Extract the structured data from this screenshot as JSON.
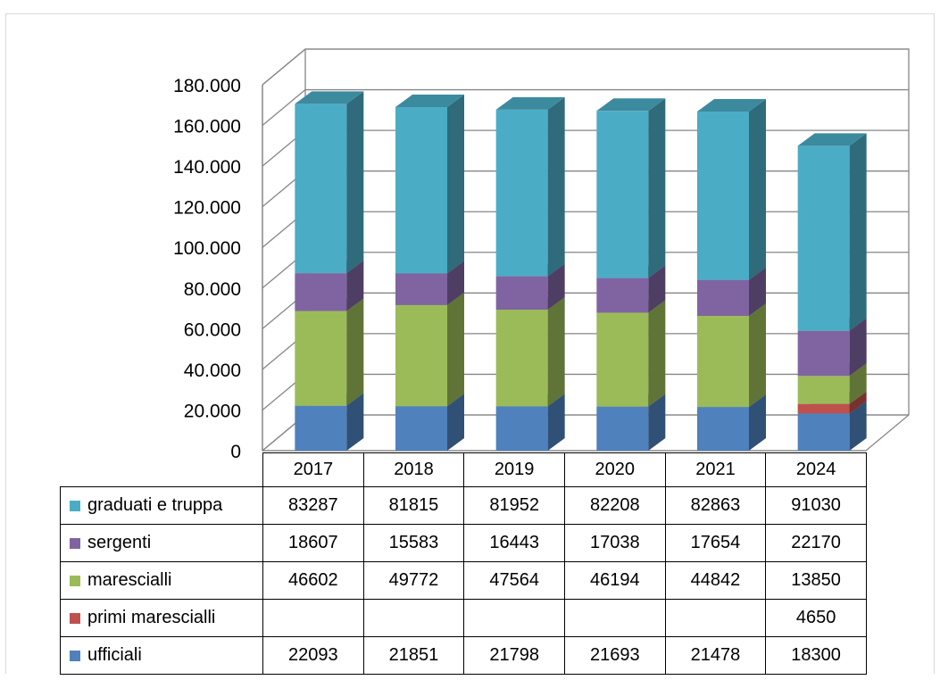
{
  "chart_data": {
    "type": "bar",
    "stacked": true,
    "three_d": true,
    "categories": [
      "2017",
      "2018",
      "2019",
      "2020",
      "2021",
      "2024"
    ],
    "series": [
      {
        "name": "ufficiali",
        "color": "#4f81bd",
        "values": [
          22093,
          21851,
          21798,
          21693,
          21478,
          18300
        ]
      },
      {
        "name": "primi marescialli",
        "color": "#c0504d",
        "values": [
          null,
          null,
          null,
          null,
          null,
          4650
        ]
      },
      {
        "name": "marescialli",
        "color": "#9bbb59",
        "values": [
          46602,
          49772,
          47564,
          46194,
          44842,
          13850
        ]
      },
      {
        "name": "sergenti",
        "color": "#8064a2",
        "values": [
          18607,
          15583,
          16443,
          17038,
          17654,
          22170
        ]
      },
      {
        "name": "graduati e truppa",
        "color": "#4bacc6",
        "values": [
          83287,
          81815,
          81952,
          82208,
          82863,
          91030
        ]
      }
    ],
    "y_ticks": [
      "0",
      "20.000",
      "40.000",
      "60.000",
      "80.000",
      "100.000",
      "120.000",
      "140.000",
      "160.000",
      "180.000"
    ],
    "ylim": [
      0,
      180000
    ],
    "grid": true,
    "legend": "data-table-below"
  }
}
